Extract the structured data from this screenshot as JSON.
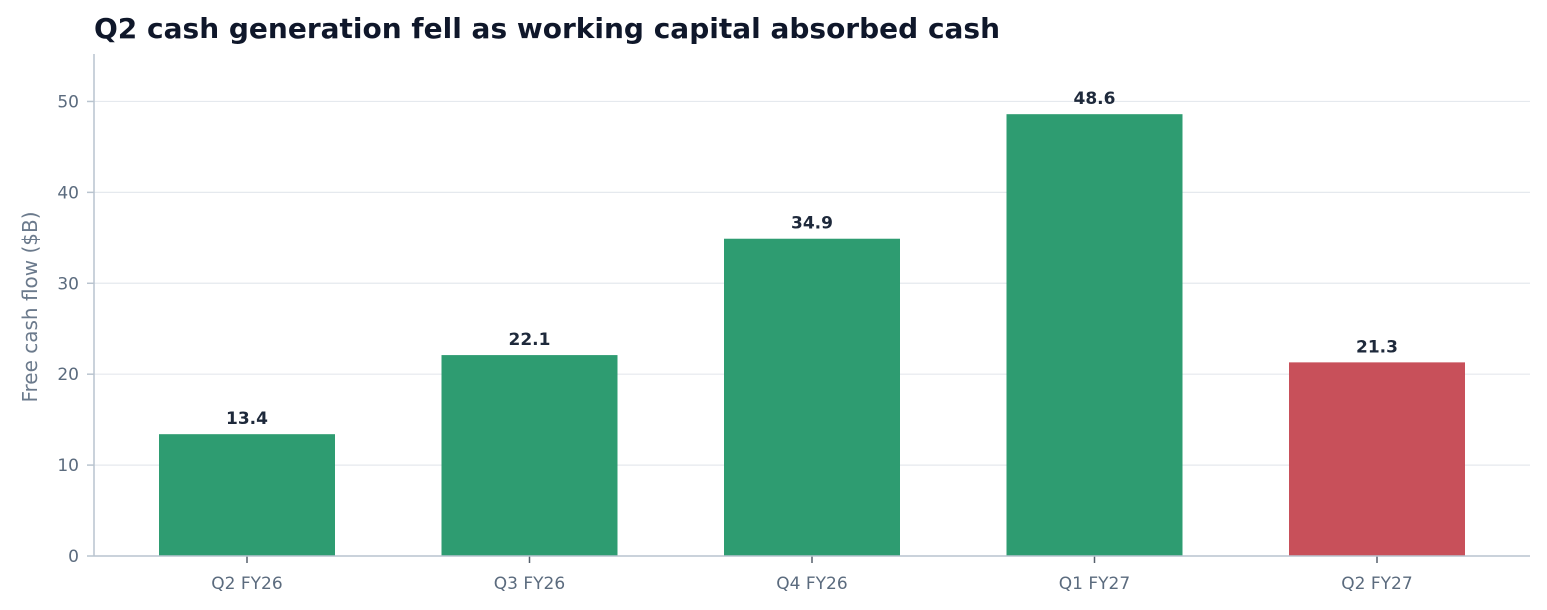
{
  "chart_data": {
    "type": "bar",
    "title": "Q2 cash generation fell as working capital absorbed cash",
    "xlabel": "",
    "ylabel": "Free cash flow ($B)",
    "categories": [
      "Q2 FY26",
      "Q3 FY26",
      "Q4 FY26",
      "Q1 FY27",
      "Q2 FY27"
    ],
    "values": [
      13.4,
      22.1,
      34.9,
      48.6,
      21.3
    ],
    "data_labels": [
      "13.4",
      "22.1",
      "34.9",
      "48.6",
      "21.3"
    ],
    "bar_colors": [
      "#2e9c71",
      "#2e9c71",
      "#2e9c71",
      "#2e9c71",
      "#c8505a"
    ],
    "ylim": [
      0,
      55
    ],
    "yticks": [
      0,
      10,
      20,
      30,
      40,
      50
    ],
    "ytick_labels": [
      "0",
      "10",
      "20",
      "30",
      "40",
      "50"
    ],
    "grid": true,
    "legend": "none",
    "colors": {
      "positive_bar": "#2e9c71",
      "highlight_bar": "#c8505a",
      "grid": "#e5e9ee",
      "axis": "#b9c4cf",
      "title": "#0f172a",
      "tick_text": "#5b6b7e"
    }
  }
}
